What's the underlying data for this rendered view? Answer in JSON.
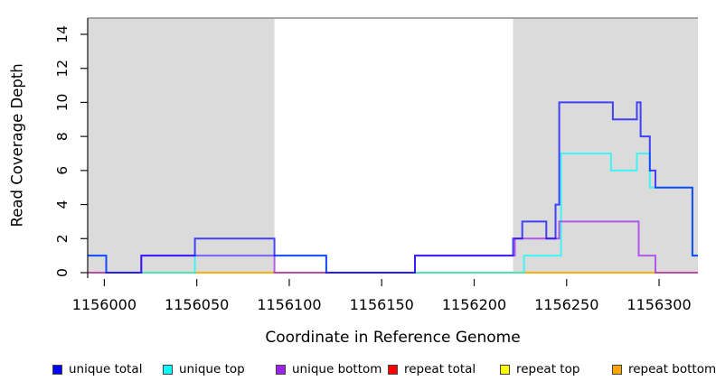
{
  "chart_data": {
    "type": "line",
    "subtype": "step-coverage",
    "title": "",
    "xlabel": "Coordinate in Reference Genome",
    "ylabel": "Read Coverage Depth",
    "xlim": [
      1155991,
      1156321
    ],
    "ylim": [
      0,
      15
    ],
    "x_ticks": [
      1156000,
      1156050,
      1156100,
      1156150,
      1156200,
      1156250,
      1156300
    ],
    "y_ticks": [
      0,
      2,
      4,
      6,
      8,
      10,
      12,
      14
    ],
    "grid": false,
    "plot_background": "#FFFFFF",
    "shaded_region_color": "#DBDBDB",
    "top_border_color": "#8C8C8C",
    "axis_color": "#111111",
    "background_regions": [
      {
        "name": "left-shaded-region",
        "x0": 1155991,
        "x1": 1156092
      },
      {
        "name": "right-shaded-region",
        "x0": 1156221,
        "x1": 1156321
      }
    ],
    "line_opacity": 0.7,
    "line_width": 2,
    "legend_position": "bottom",
    "legend": [
      {
        "label": "unique total",
        "color": "#0000FF"
      },
      {
        "label": "unique top",
        "color": "#00FFFF"
      },
      {
        "label": "unique bottom",
        "color": "#A020F0"
      },
      {
        "label": "repeat total",
        "color": "#FF0000"
      },
      {
        "label": "repeat top",
        "color": "#FFFF00"
      },
      {
        "label": "repeat bottom",
        "color": "#FFA500"
      }
    ],
    "series": [
      {
        "name": "repeat total",
        "color": "#FF0000",
        "steps": [
          [
            1155991,
            0
          ],
          [
            1156321,
            0
          ]
        ]
      },
      {
        "name": "repeat top",
        "color": "#FFFF00",
        "steps": [
          [
            1155991,
            0
          ],
          [
            1156321,
            0
          ]
        ]
      },
      {
        "name": "repeat bottom",
        "color": "#FFA500",
        "steps": [
          [
            1155991,
            0
          ],
          [
            1156321,
            0
          ]
        ]
      },
      {
        "name": "unique top",
        "color": "#00FFFF",
        "steps": [
          [
            1155991,
            1
          ],
          [
            1156001,
            0
          ],
          [
            1156049,
            1
          ],
          [
            1156120,
            0
          ],
          [
            1156227,
            1
          ],
          [
            1156247,
            7
          ],
          [
            1156274,
            6
          ],
          [
            1156288,
            7
          ],
          [
            1156295,
            5
          ],
          [
            1156318,
            1
          ],
          [
            1156321,
            1
          ]
        ]
      },
      {
        "name": "unique bottom",
        "color": "#A020F0",
        "steps": [
          [
            1155991,
            0
          ],
          [
            1156020,
            1
          ],
          [
            1156092,
            0
          ],
          [
            1156168,
            1
          ],
          [
            1156222,
            2
          ],
          [
            1156246,
            3
          ],
          [
            1156289,
            1
          ],
          [
            1156298,
            0
          ],
          [
            1156321,
            0
          ]
        ]
      },
      {
        "name": "unique total",
        "color": "#0000FF",
        "steps": [
          [
            1155991,
            1
          ],
          [
            1156001,
            0
          ],
          [
            1156020,
            1
          ],
          [
            1156049,
            2
          ],
          [
            1156092,
            1
          ],
          [
            1156120,
            0
          ],
          [
            1156168,
            1
          ],
          [
            1156221,
            2
          ],
          [
            1156226,
            3
          ],
          [
            1156239,
            2
          ],
          [
            1156244,
            4
          ],
          [
            1156246,
            10
          ],
          [
            1156275,
            9
          ],
          [
            1156288,
            10
          ],
          [
            1156290,
            8
          ],
          [
            1156295,
            6
          ],
          [
            1156298,
            5
          ],
          [
            1156318,
            1
          ],
          [
            1156321,
            1
          ]
        ]
      }
    ]
  }
}
